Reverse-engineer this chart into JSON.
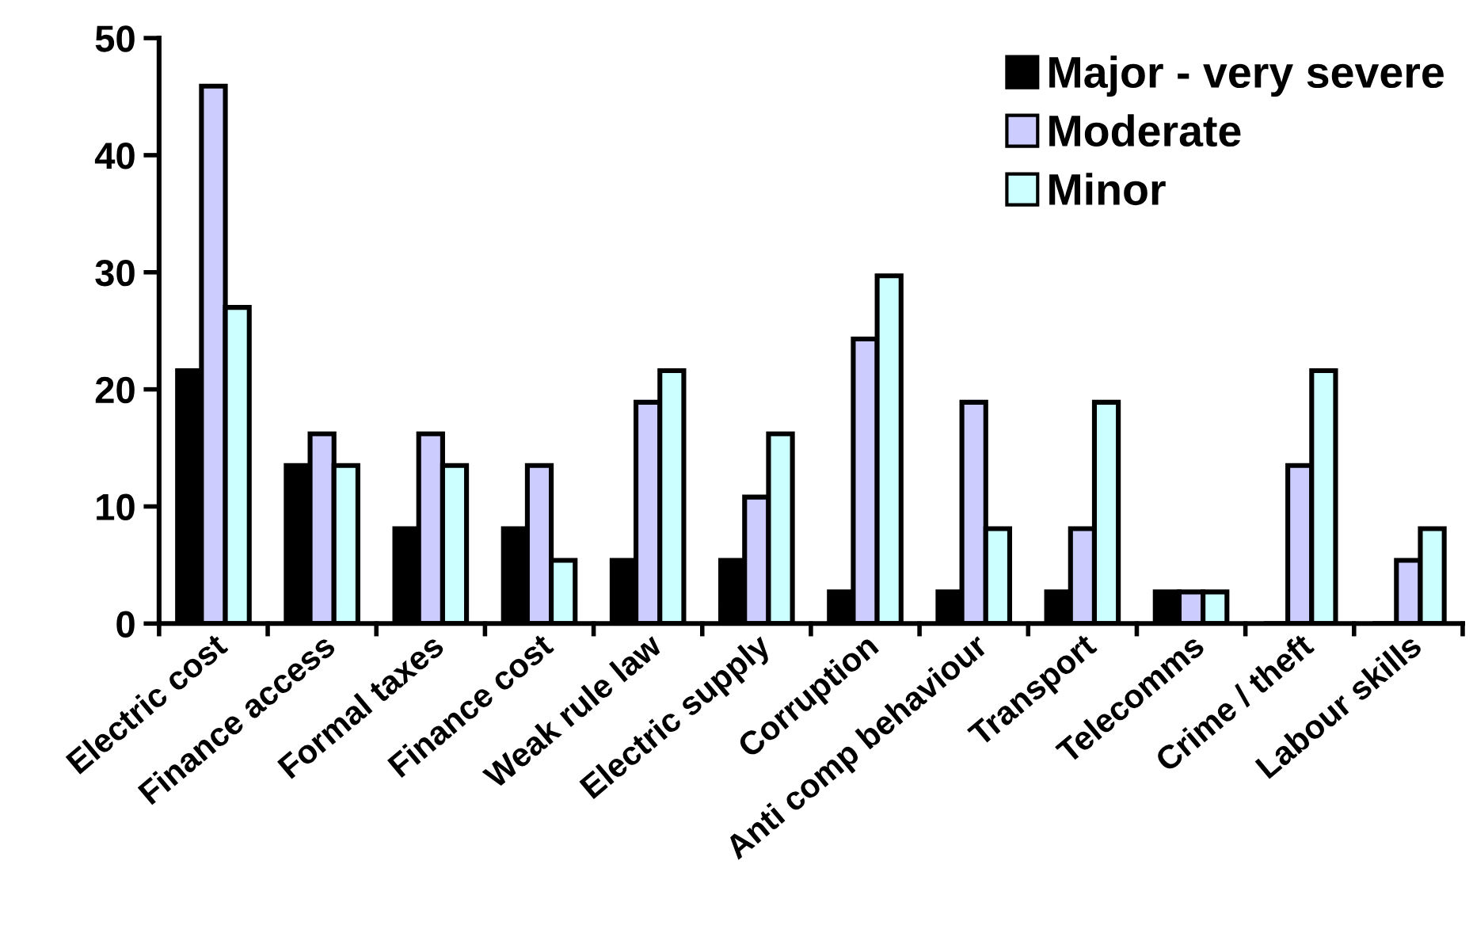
{
  "chart_data": {
    "type": "bar",
    "categories": [
      "Electric cost",
      "Finance access",
      "Formal taxes",
      "Finance cost",
      "Weak rule law",
      "Electric supply",
      "Corruption",
      "Anti comp behaviour",
      "Transport",
      "Telecomms",
      "Crime / theft",
      "Labour skills"
    ],
    "series": [
      {
        "name": "Major - very severe",
        "color": "#000000",
        "values": [
          21.6,
          13.5,
          8.1,
          8.1,
          5.4,
          5.4,
          2.7,
          2.7,
          2.7,
          2.7,
          0,
          0
        ]
      },
      {
        "name": "Moderate",
        "color": "#ccccff",
        "values": [
          45.9,
          16.2,
          16.2,
          13.5,
          18.9,
          10.8,
          24.3,
          18.9,
          8.1,
          2.7,
          13.5,
          5.4
        ]
      },
      {
        "name": "Minor",
        "color": "#ccffff",
        "values": [
          27.0,
          13.5,
          13.5,
          5.4,
          21.6,
          16.2,
          29.7,
          8.1,
          18.9,
          2.7,
          21.6,
          8.1
        ]
      }
    ],
    "ylim": [
      0,
      50
    ],
    "yticks": [
      0,
      10,
      20,
      30,
      40,
      50
    ],
    "grid": false,
    "legend": "top right"
  }
}
